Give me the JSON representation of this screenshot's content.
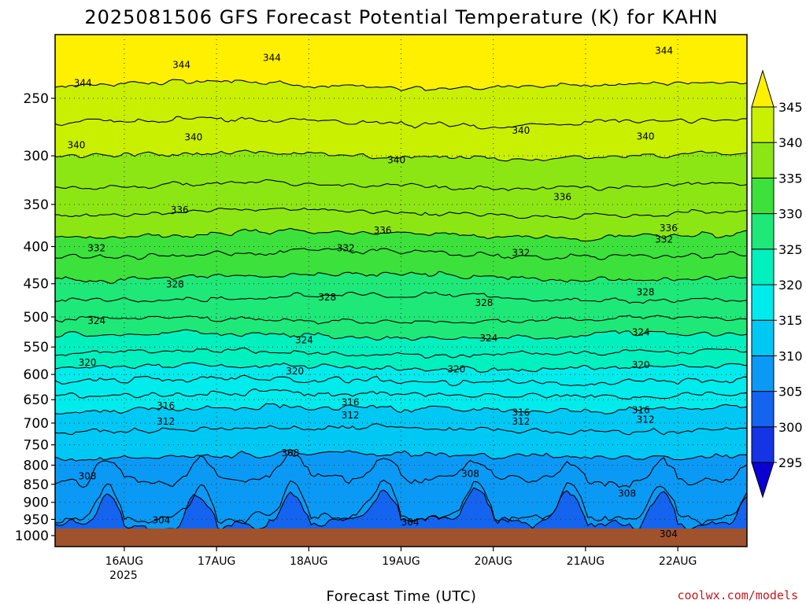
{
  "chart_data": {
    "type": "heatmap",
    "title": "2025081506 GFS Forecast Potential Temperature (K) for KAHN",
    "xlabel": "Forecast Time (UTC)",
    "ylabel": "",
    "y_scale": "log",
    "y_inverted": true,
    "ylim": [
      1000,
      200
    ],
    "y_ticks": [
      250,
      300,
      350,
      400,
      450,
      500,
      550,
      600,
      650,
      700,
      750,
      800,
      850,
      900,
      950,
      1000
    ],
    "x_ticks": [
      "16AUG",
      "17AUG",
      "18AUG",
      "19AUG",
      "20AUG",
      "21AUG",
      "22AUG"
    ],
    "x_year_label": "2025",
    "grid": true,
    "colorbar": {
      "levels": [
        295,
        300,
        305,
        310,
        315,
        320,
        325,
        330,
        335,
        340,
        345
      ],
      "colors": [
        "#0a00d2",
        "#1434e6",
        "#1464f0",
        "#0a9af5",
        "#00c8f5",
        "#00ebeb",
        "#00f0be",
        "#1ee878",
        "#3ce13c",
        "#8ce614",
        "#c8f000",
        "#fff000"
      ],
      "extend": "both"
    },
    "contour_interval_K": 2,
    "contour_levels_labeled": [
      304,
      308,
      312,
      316,
      320,
      324,
      328,
      332,
      336,
      340,
      344
    ],
    "isentropes_mean_pressure_hPa": [
      {
        "theta": 304,
        "p": 965
      },
      {
        "theta": 306,
        "p": 945
      },
      {
        "theta": 308,
        "p": 838
      },
      {
        "theta": 310,
        "p": 775
      },
      {
        "theta": 312,
        "p": 715
      },
      {
        "theta": 314,
        "p": 670
      },
      {
        "theta": 316,
        "p": 640
      },
      {
        "theta": 318,
        "p": 612
      },
      {
        "theta": 320,
        "p": 586
      },
      {
        "theta": 322,
        "p": 560
      },
      {
        "theta": 324,
        "p": 530
      },
      {
        "theta": 326,
        "p": 505
      },
      {
        "theta": 328,
        "p": 470
      },
      {
        "theta": 330,
        "p": 440
      },
      {
        "theta": 332,
        "p": 410
      },
      {
        "theta": 334,
        "p": 385
      },
      {
        "theta": 336,
        "p": 360
      },
      {
        "theta": 338,
        "p": 330
      },
      {
        "theta": 340,
        "p": 300
      },
      {
        "theta": 342,
        "p": 270
      },
      {
        "theta": 344,
        "p": 240
      }
    ],
    "contour_label_positions": [
      {
        "text": "344",
        "day": 15.55,
        "p": 238
      },
      {
        "text": "344",
        "day": 16.62,
        "p": 225
      },
      {
        "text": "344",
        "day": 17.6,
        "p": 220
      },
      {
        "text": "344",
        "day": 21.85,
        "p": 215
      },
      {
        "text": "340",
        "day": 15.48,
        "p": 290
      },
      {
        "text": "340",
        "day": 16.75,
        "p": 283
      },
      {
        "text": "340",
        "day": 18.95,
        "p": 304
      },
      {
        "text": "340",
        "day": 20.3,
        "p": 277
      },
      {
        "text": "340",
        "day": 21.65,
        "p": 282
      },
      {
        "text": "336",
        "day": 14.75,
        "p": 356
      },
      {
        "text": "336",
        "day": 16.6,
        "p": 356
      },
      {
        "text": "336",
        "day": 18.8,
        "p": 380
      },
      {
        "text": "336",
        "day": 20.75,
        "p": 342
      },
      {
        "text": "336",
        "day": 21.9,
        "p": 377
      },
      {
        "text": "332",
        "day": 15.7,
        "p": 402
      },
      {
        "text": "332",
        "day": 18.4,
        "p": 402
      },
      {
        "text": "332",
        "day": 20.3,
        "p": 408
      },
      {
        "text": "332",
        "day": 21.85,
        "p": 391
      },
      {
        "text": "328",
        "day": 16.55,
        "p": 451
      },
      {
        "text": "328",
        "day": 18.2,
        "p": 470
      },
      {
        "text": "328",
        "day": 19.9,
        "p": 478
      },
      {
        "text": "328",
        "day": 21.65,
        "p": 462
      },
      {
        "text": "324",
        "day": 15.7,
        "p": 506
      },
      {
        "text": "324",
        "day": 17.95,
        "p": 538
      },
      {
        "text": "324",
        "day": 19.95,
        "p": 535
      },
      {
        "text": "324",
        "day": 21.6,
        "p": 525
      },
      {
        "text": "320",
        "day": 15.6,
        "p": 578
      },
      {
        "text": "320",
        "day": 17.85,
        "p": 594
      },
      {
        "text": "320",
        "day": 19.6,
        "p": 590
      },
      {
        "text": "320",
        "day": 21.6,
        "p": 582
      },
      {
        "text": "316",
        "day": 16.45,
        "p": 663
      },
      {
        "text": "316",
        "day": 18.45,
        "p": 655
      },
      {
        "text": "316",
        "day": 20.3,
        "p": 677
      },
      {
        "text": "316",
        "day": 21.6,
        "p": 672
      },
      {
        "text": "312",
        "day": 14.75,
        "p": 707
      },
      {
        "text": "312",
        "day": 16.45,
        "p": 697
      },
      {
        "text": "312",
        "day": 18.45,
        "p": 683
      },
      {
        "text": "312",
        "day": 20.3,
        "p": 697
      },
      {
        "text": "312",
        "day": 21.65,
        "p": 692
      },
      {
        "text": "308",
        "day": 15.6,
        "p": 828
      },
      {
        "text": "308",
        "day": 17.8,
        "p": 770
      },
      {
        "text": "308",
        "day": 19.75,
        "p": 822
      },
      {
        "text": "308",
        "day": 21.45,
        "p": 875
      },
      {
        "text": "304",
        "day": 16.4,
        "p": 952
      },
      {
        "text": "304",
        "day": 19.1,
        "p": 958
      },
      {
        "text": "304",
        "day": 21.9,
        "p": 995
      }
    ],
    "x_range_days": [
      15.25,
      22.75
    ],
    "surface_fill_color": "#a0522d"
  },
  "footer": {
    "credit": "coolwx.com/models"
  }
}
